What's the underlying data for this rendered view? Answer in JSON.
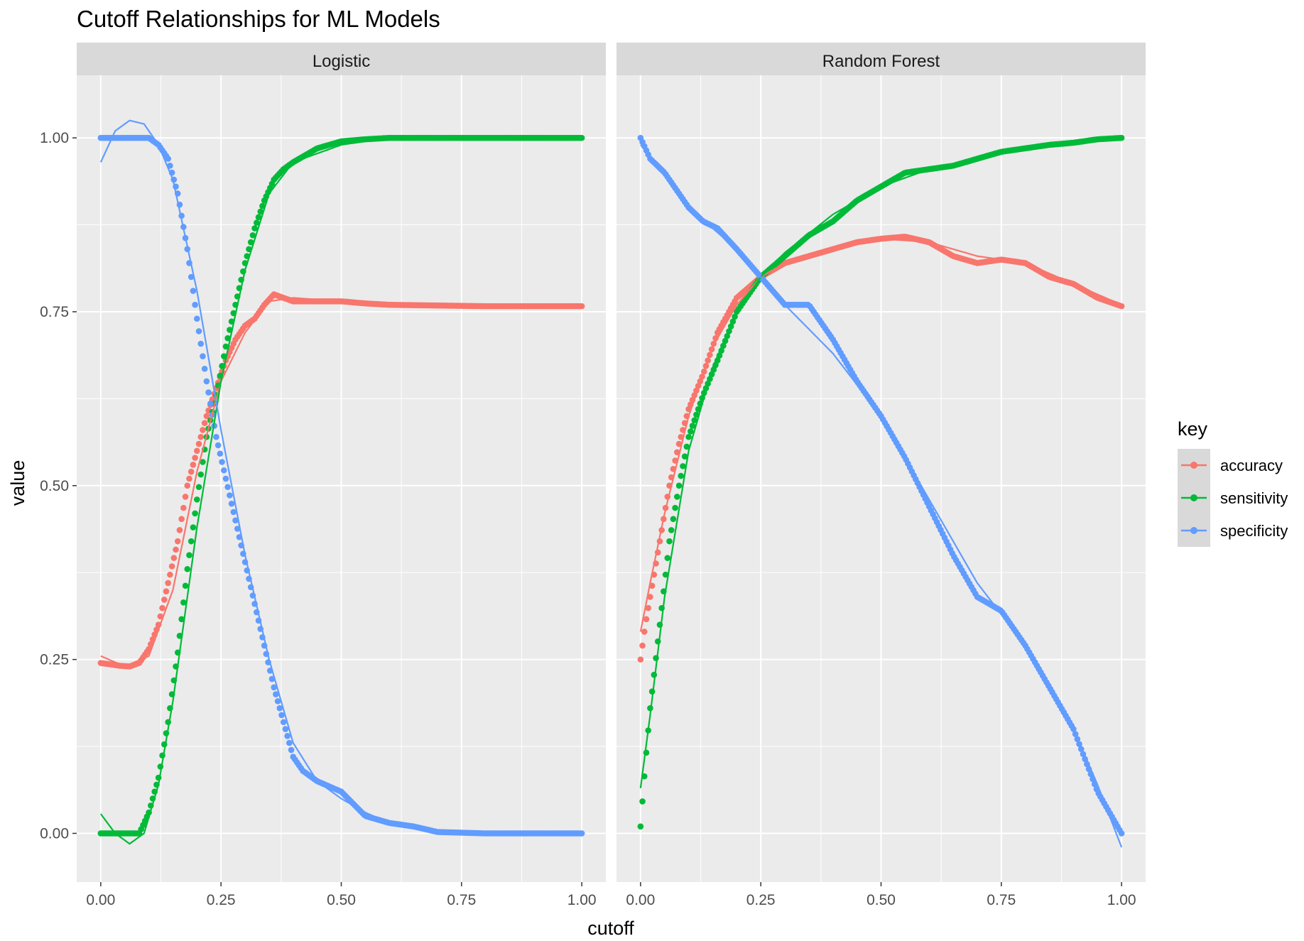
{
  "chart_data": {
    "type": "scatter",
    "title": "Cutoff Relationships for ML Models",
    "xlabel": "cutoff",
    "ylabel": "value",
    "xlim": [
      -0.05,
      1.05
    ],
    "ylim": [
      -0.07,
      1.09
    ],
    "x_ticks": [
      0,
      0.25,
      0.5,
      0.75,
      1
    ],
    "x_tick_labels": [
      "0.00",
      "0.25",
      "0.50",
      "0.75",
      "1.00"
    ],
    "y_ticks": [
      0,
      0.25,
      0.5,
      0.75,
      1
    ],
    "y_tick_labels": [
      "0.00",
      "0.25",
      "0.50",
      "0.75",
      "1.00"
    ],
    "grid": true,
    "legend": {
      "title": "key",
      "position": "right",
      "entries": [
        {
          "label": "accuracy",
          "color": "#F8766D"
        },
        {
          "label": "sensitivity",
          "color": "#00BA38"
        },
        {
          "label": "specificity",
          "color": "#619CFF"
        }
      ]
    },
    "colors": {
      "panel_bg": "#EBEBEB",
      "strip_bg": "#D9D9D9",
      "grid": "#FFFFFF",
      "accuracy": "#F8766D",
      "sensitivity": "#00BA38",
      "specificity": "#619CFF"
    },
    "panels": [
      {
        "strip": "Logistic",
        "series": [
          {
            "name": "accuracy",
            "color": "#F8766D",
            "x": [
              0,
              0.02,
              0.04,
              0.06,
              0.08,
              0.1,
              0.12,
              0.14,
              0.16,
              0.18,
              0.2,
              0.22,
              0.24,
              0.26,
              0.28,
              0.3,
              0.32,
              0.34,
              0.36,
              0.38,
              0.4,
              0.45,
              0.5,
              0.55,
              0.6,
              0.7,
              0.8,
              0.9,
              1.0
            ],
            "y": [
              0.245,
              0.243,
              0.241,
              0.24,
              0.245,
              0.265,
              0.3,
              0.36,
              0.42,
              0.5,
              0.55,
              0.6,
              0.64,
              0.68,
              0.71,
              0.73,
              0.74,
              0.76,
              0.775,
              0.77,
              0.765,
              0.765,
              0.765,
              0.762,
              0.76,
              0.759,
              0.758,
              0.758,
              0.758
            ]
          },
          {
            "name": "sensitivity",
            "color": "#00BA38",
            "x": [
              0,
              0.02,
              0.04,
              0.06,
              0.08,
              0.1,
              0.12,
              0.14,
              0.16,
              0.18,
              0.2,
              0.22,
              0.24,
              0.26,
              0.28,
              0.3,
              0.32,
              0.34,
              0.36,
              0.38,
              0.4,
              0.45,
              0.5,
              0.55,
              0.6,
              0.7,
              0.8,
              0.9,
              1.0
            ],
            "y": [
              0,
              0,
              0,
              0,
              0,
              0.03,
              0.08,
              0.16,
              0.26,
              0.38,
              0.48,
              0.57,
              0.63,
              0.7,
              0.76,
              0.82,
              0.87,
              0.91,
              0.94,
              0.955,
              0.965,
              0.985,
              0.995,
              0.998,
              1,
              1,
              1,
              1,
              1
            ]
          },
          {
            "name": "specificity",
            "color": "#619CFF",
            "x": [
              0,
              0.02,
              0.04,
              0.06,
              0.08,
              0.1,
              0.12,
              0.14,
              0.16,
              0.18,
              0.2,
              0.22,
              0.24,
              0.26,
              0.28,
              0.3,
              0.32,
              0.34,
              0.36,
              0.38,
              0.4,
              0.42,
              0.45,
              0.5,
              0.55,
              0.6,
              0.65,
              0.7,
              0.8,
              0.9,
              1.0
            ],
            "y": [
              1,
              1,
              1,
              1,
              1,
              1,
              0.99,
              0.97,
              0.92,
              0.84,
              0.74,
              0.65,
              0.57,
              0.51,
              0.45,
              0.39,
              0.33,
              0.27,
              0.21,
              0.16,
              0.11,
              0.09,
              0.075,
              0.06,
              0.025,
              0.015,
              0.01,
              0.002,
              0,
              0,
              0
            ]
          }
        ],
        "smooth": [
          {
            "name": "accuracy",
            "x": [
              0,
              0.05,
              0.1,
              0.15,
              0.2,
              0.25,
              0.3,
              0.35,
              0.4,
              0.5,
              0.6,
              0.8,
              1.0
            ],
            "y": [
              0.255,
              0.24,
              0.255,
              0.35,
              0.52,
              0.65,
              0.72,
              0.765,
              0.77,
              0.765,
              0.76,
              0.758,
              0.758
            ]
          },
          {
            "name": "sensitivity",
            "x": [
              0,
              0.03,
              0.06,
              0.09,
              0.12,
              0.15,
              0.2,
              0.25,
              0.3,
              0.35,
              0.4,
              0.5,
              0.6,
              0.8,
              1.0
            ],
            "y": [
              0.028,
              0.0,
              -0.015,
              0.0,
              0.07,
              0.19,
              0.44,
              0.65,
              0.81,
              0.92,
              0.965,
              0.99,
              1.0,
              1.0,
              1.0
            ]
          },
          {
            "name": "specificity",
            "x": [
              0,
              0.03,
              0.06,
              0.09,
              0.12,
              0.15,
              0.2,
              0.25,
              0.3,
              0.35,
              0.4,
              0.45,
              0.5,
              0.55,
              0.6,
              0.7,
              0.8,
              1.0
            ],
            "y": [
              0.965,
              1.01,
              1.025,
              1.02,
              0.99,
              0.94,
              0.78,
              0.58,
              0.4,
              0.25,
              0.13,
              0.075,
              0.05,
              0.03,
              0.015,
              0.003,
              0,
              0
            ]
          }
        ]
      },
      {
        "strip": "Random Forest",
        "series": [
          {
            "name": "accuracy",
            "color": "#F8766D",
            "x": [
              0,
              0.01,
              0.02,
              0.04,
              0.06,
              0.08,
              0.1,
              0.13,
              0.16,
              0.2,
              0.25,
              0.3,
              0.35,
              0.4,
              0.45,
              0.5,
              0.55,
              0.6,
              0.65,
              0.7,
              0.75,
              0.8,
              0.85,
              0.9,
              0.95,
              1.0
            ],
            "y": [
              0.25,
              0.3,
              0.34,
              0.42,
              0.5,
              0.56,
              0.61,
              0.66,
              0.72,
              0.77,
              0.8,
              0.82,
              0.83,
              0.84,
              0.85,
              0.855,
              0.858,
              0.85,
              0.83,
              0.82,
              0.825,
              0.82,
              0.8,
              0.79,
              0.77,
              0.758
            ]
          },
          {
            "name": "sensitivity",
            "color": "#00BA38",
            "x": [
              0,
              0.01,
              0.02,
              0.04,
              0.06,
              0.08,
              0.1,
              0.13,
              0.16,
              0.2,
              0.25,
              0.3,
              0.35,
              0.4,
              0.45,
              0.5,
              0.55,
              0.6,
              0.65,
              0.7,
              0.75,
              0.8,
              0.85,
              0.9,
              0.95,
              1.0
            ],
            "y": [
              0.01,
              0.1,
              0.18,
              0.3,
              0.42,
              0.5,
              0.57,
              0.63,
              0.68,
              0.75,
              0.8,
              0.83,
              0.86,
              0.88,
              0.91,
              0.93,
              0.95,
              0.955,
              0.96,
              0.97,
              0.98,
              0.985,
              0.99,
              0.993,
              0.998,
              1
            ]
          },
          {
            "name": "specificity",
            "color": "#619CFF",
            "x": [
              0,
              0.02,
              0.05,
              0.08,
              0.1,
              0.13,
              0.16,
              0.2,
              0.25,
              0.3,
              0.35,
              0.4,
              0.45,
              0.5,
              0.55,
              0.6,
              0.65,
              0.7,
              0.75,
              0.8,
              0.85,
              0.9,
              0.95,
              1.0
            ],
            "y": [
              1,
              0.97,
              0.95,
              0.92,
              0.9,
              0.88,
              0.87,
              0.84,
              0.8,
              0.76,
              0.76,
              0.71,
              0.65,
              0.6,
              0.54,
              0.47,
              0.4,
              0.34,
              0.32,
              0.27,
              0.21,
              0.15,
              0.06,
              0
            ]
          }
        ],
        "smooth": [
          {
            "name": "accuracy",
            "x": [
              0,
              0.02,
              0.05,
              0.1,
              0.15,
              0.2,
              0.25,
              0.3,
              0.4,
              0.5,
              0.6,
              0.7,
              0.8,
              0.9,
              1.0
            ],
            "y": [
              0.29,
              0.36,
              0.46,
              0.6,
              0.7,
              0.76,
              0.8,
              0.82,
              0.84,
              0.855,
              0.85,
              0.83,
              0.82,
              0.79,
              0.76
            ]
          },
          {
            "name": "sensitivity",
            "x": [
              0,
              0.02,
              0.05,
              0.1,
              0.15,
              0.2,
              0.25,
              0.3,
              0.4,
              0.5,
              0.6,
              0.7,
              0.8,
              0.9,
              1.0
            ],
            "y": [
              0.065,
              0.17,
              0.34,
              0.55,
              0.67,
              0.75,
              0.8,
              0.835,
              0.89,
              0.93,
              0.955,
              0.97,
              0.985,
              0.993,
              1.0
            ]
          },
          {
            "name": "specificity",
            "x": [
              0,
              0.05,
              0.1,
              0.2,
              0.3,
              0.4,
              0.5,
              0.6,
              0.7,
              0.8,
              0.9,
              0.95,
              1.0
            ],
            "y": [
              0.99,
              0.95,
              0.9,
              0.84,
              0.76,
              0.69,
              0.6,
              0.48,
              0.36,
              0.27,
              0.15,
              0.07,
              -0.02
            ]
          }
        ]
      }
    ]
  }
}
